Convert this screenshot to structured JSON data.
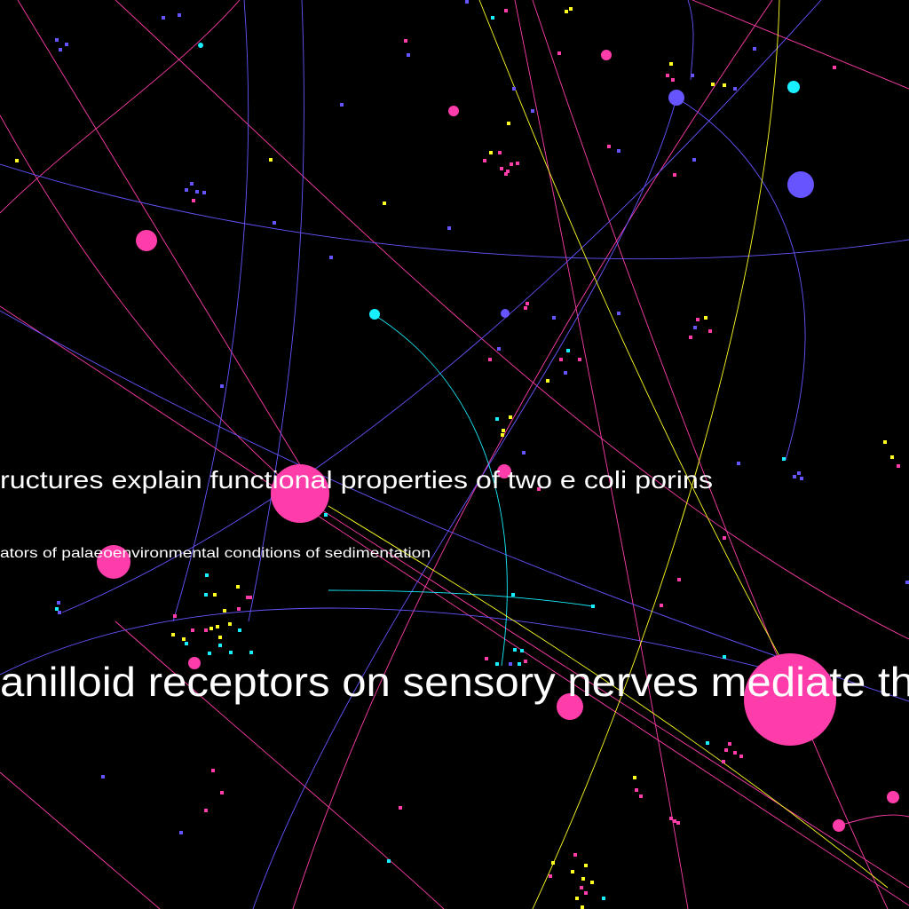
{
  "labels": {
    "porins": "ructures explain functional properties of two e coli porins",
    "sediment": "ators of palaeoenvironmental conditions of sedimentation",
    "vanilloid": "anilloid receptors on sensory nerves mediate th"
  },
  "colors": {
    "background": "#000000",
    "magenta": "#ff3daa",
    "blue": "#6655ff",
    "cyan": "#19f0ff",
    "yellow": "#ffff22",
    "text": "#ffffff"
  }
}
